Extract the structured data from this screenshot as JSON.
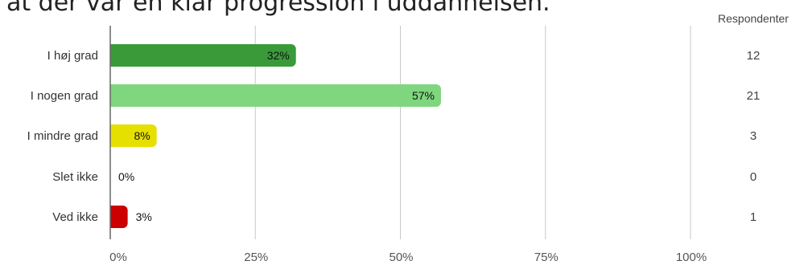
{
  "chart_data": {
    "type": "bar",
    "orientation": "horizontal",
    "title": "at der var en klar progression i uddannelsen.",
    "categories": [
      "I høj grad",
      "I nogen grad",
      "I mindre grad",
      "Slet ikke",
      "Ved ikke"
    ],
    "values": [
      32,
      57,
      8,
      0,
      3
    ],
    "value_labels": [
      "32%",
      "57%",
      "8%",
      "0%",
      "3%"
    ],
    "respondents_header": "Respondenter",
    "respondents": [
      "12",
      "21",
      "3",
      "0",
      "1"
    ],
    "colors": [
      "#3a9a3a",
      "#7fd67f",
      "#e6e000",
      "#999999",
      "#cc0000"
    ],
    "xlim": [
      0,
      100
    ],
    "xticks": [
      "0%",
      "25%",
      "50%",
      "75%",
      "100%"
    ],
    "grid": true
  }
}
